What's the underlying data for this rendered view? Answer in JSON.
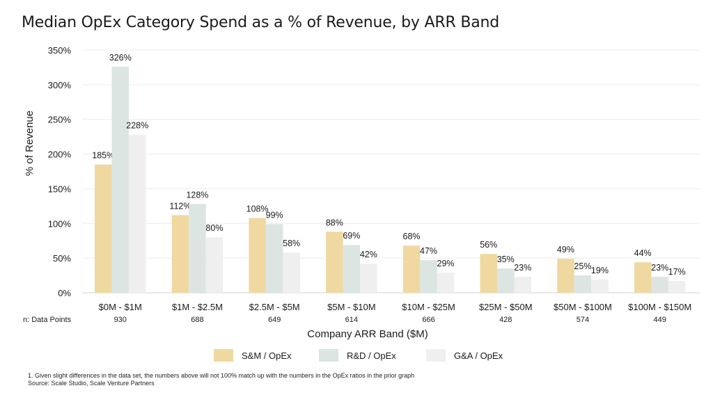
{
  "title": "Median OpEx Category Spend as a % of Revenue, by ARR Band",
  "chart_data": {
    "type": "bar",
    "ylabel": "% of Revenue",
    "xlabel": "Company ARR Band ($M)",
    "ylim": [
      0,
      350
    ],
    "yticks": [
      "0%",
      "50%",
      "100%",
      "150%",
      "200%",
      "250%",
      "300%",
      "350%"
    ],
    "categories": [
      "$0M - $1M",
      "$1M - $2.5M",
      "$2.5M - $5M",
      "$5M - $10M",
      "$10M - $25M",
      "$25M - $50M",
      "$50M - $100M",
      "$100M - $150M"
    ],
    "data_points_label": "n: Data Points",
    "data_points": [
      "930",
      "688",
      "649",
      "614",
      "666",
      "428",
      "574",
      "449"
    ],
    "series": [
      {
        "name": "S&M / OpEx",
        "color": "#efd9a1",
        "values": [
          185,
          112,
          108,
          88,
          68,
          56,
          49,
          44
        ],
        "labels": [
          "185%",
          "112%",
          "108%",
          "88%",
          "68%",
          "56%",
          "49%",
          "44%"
        ]
      },
      {
        "name": "R&D / OpEx",
        "color": "#dce5e2",
        "values": [
          326,
          128,
          99,
          69,
          47,
          35,
          25,
          23
        ],
        "labels": [
          "326%",
          "128%",
          "99%",
          "69%",
          "47%",
          "35%",
          "25%",
          "23%"
        ]
      },
      {
        "name": "G&A / OpEx",
        "color": "#efefef",
        "values": [
          228,
          80,
          58,
          42,
          29,
          23,
          19,
          17
        ],
        "labels": [
          "228%",
          "80%",
          "58%",
          "42%",
          "29%",
          "23%",
          "19%",
          "17%"
        ]
      }
    ],
    "legend_position": "bottom",
    "grid": true
  },
  "footnotes": [
    "1. Given slight differences in the data set, the numbers above will not 100% match up with the numbers in the OpEx ratios in the prior graph",
    "Source: Scale Studio, Scale Venture Partners"
  ]
}
